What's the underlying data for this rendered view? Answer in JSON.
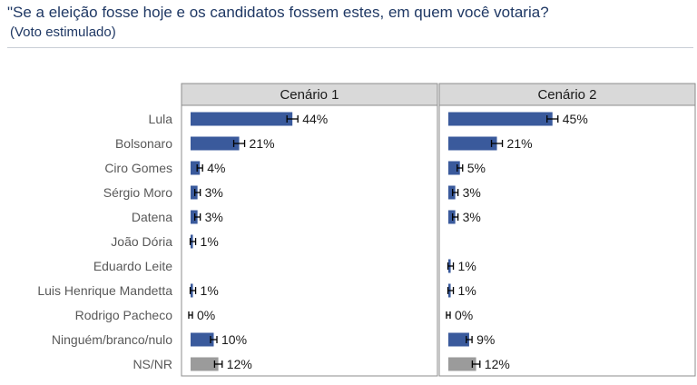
{
  "header": {
    "question": "\"Se a eleição fosse hoje e os candidatos fossem estes, em quem você votaria?",
    "subtitle": "(Voto estimulado)"
  },
  "colors": {
    "bar": "#3a5a9c",
    "bar_nsnr": "#9b9b9b",
    "panel_header": "#d9d9d9",
    "title": "#1f3864"
  },
  "chart_data": {
    "type": "bar",
    "orientation": "horizontal",
    "categories": [
      "Lula",
      "Bolsonaro",
      "Ciro Gomes",
      "Sérgio Moro",
      "Datena",
      "João Dória",
      "Eduardo Leite",
      "Luis Henrique Mandetta",
      "Rodrigo Pacheco",
      "Ninguém/branco/nulo",
      "NS/NR"
    ],
    "panels": [
      {
        "name": "Cenário 1",
        "values": [
          44,
          21,
          4,
          3,
          3,
          1,
          null,
          1,
          0,
          10,
          12
        ],
        "labels": [
          "44%",
          "21%",
          "4%",
          "3%",
          "3%",
          "1%",
          "",
          "1%",
          "0%",
          "10%",
          "12%"
        ]
      },
      {
        "name": "Cenário 2",
        "values": [
          45,
          21,
          5,
          3,
          3,
          null,
          1,
          1,
          0,
          9,
          12
        ],
        "labels": [
          "45%",
          "21%",
          "5%",
          "3%",
          "3%",
          "",
          "1%",
          "1%",
          "0%",
          "9%",
          "12%"
        ]
      }
    ],
    "error_bars": true,
    "xlim": [
      0,
      100
    ]
  }
}
